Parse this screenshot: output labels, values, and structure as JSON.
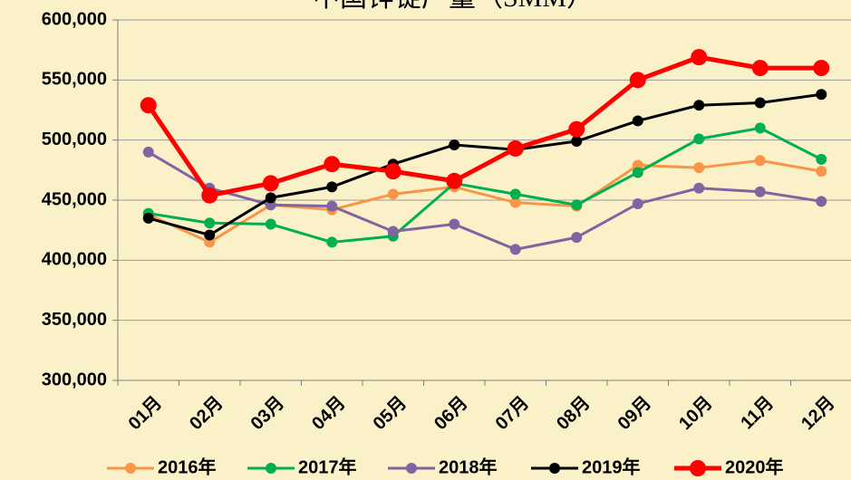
{
  "chart_data": {
    "type": "line",
    "title": "中国锌锭产量（SMM）",
    "categories": [
      "01月",
      "02月",
      "03月",
      "04月",
      "05月",
      "06月",
      "07月",
      "08月",
      "09月",
      "10月",
      "11月",
      "12月"
    ],
    "ylim": [
      300000,
      600000
    ],
    "yticks": [
      {
        "value": 300000,
        "label": "300,000"
      },
      {
        "value": 350000,
        "label": "350,000"
      },
      {
        "value": 400000,
        "label": "400,000"
      },
      {
        "value": 450000,
        "label": "450,000"
      },
      {
        "value": 500000,
        "label": "500,000"
      },
      {
        "value": 550000,
        "label": "550,000"
      },
      {
        "value": 600000,
        "label": "600,000"
      }
    ],
    "grid": true,
    "legend": "bottom",
    "series": [
      {
        "name": "2016年",
        "color": "#f79646",
        "values": [
          438000,
          415000,
          446000,
          442000,
          455000,
          461000,
          448000,
          445000,
          479000,
          477000,
          483000,
          474000
        ]
      },
      {
        "name": "2017年",
        "color": "#00b050",
        "values": [
          439000,
          431000,
          430000,
          415000,
          420000,
          464000,
          455000,
          446000,
          473000,
          501000,
          510000,
          484000
        ]
      },
      {
        "name": "2018年",
        "color": "#8064a2",
        "values": [
          490000,
          460000,
          446000,
          445000,
          424000,
          430000,
          409000,
          419000,
          447000,
          460000,
          457000,
          449000
        ]
      },
      {
        "name": "2019年",
        "color": "#000000",
        "values": [
          435000,
          421000,
          452000,
          461000,
          480000,
          496000,
          492000,
          499000,
          516000,
          529000,
          531000,
          538000
        ]
      },
      {
        "name": "2020年",
        "color": "#ff0000",
        "values": [
          529000,
          454000,
          464000,
          480000,
          474000,
          466000,
          493000,
          509000,
          550000,
          569000,
          560000,
          560000
        ]
      }
    ]
  }
}
